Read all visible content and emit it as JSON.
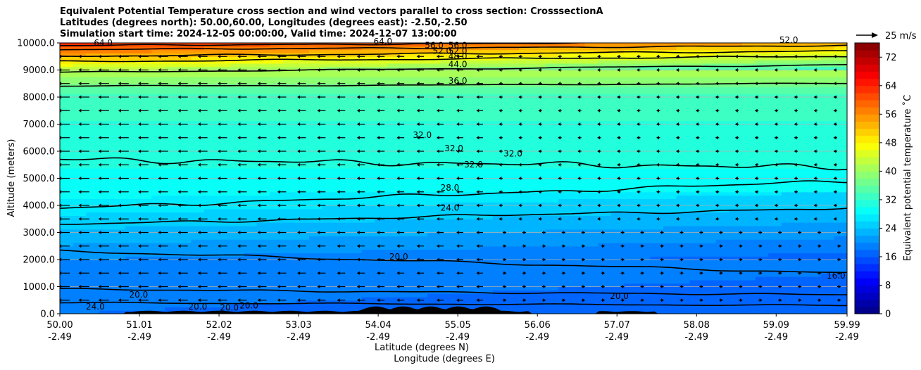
{
  "chart_data": {
    "type": "contour",
    "title": [
      "Equivalent Potential Temperature cross section and wind vectors parallel to cross section: CrosssectionA",
      "Latitudes (degrees north): 50.00,60.00, Longitudes (degrees east): -2.50,-2.50",
      "Simulation start time: 2024-12-05 00:00:00, Valid time: 2024-12-07 13:00:00"
    ],
    "ylabel": "Altitude (meters)",
    "xlabel": "Latitude (degrees N)",
    "xlabel2": "Longitude (degrees E)",
    "ylim": [
      0,
      10000
    ],
    "xlim": [
      50.0,
      59.99
    ],
    "yticks": [
      "0.0",
      "1000.0",
      "2000.0",
      "3000.0",
      "4000.0",
      "5000.0",
      "6000.0",
      "7000.0",
      "8000.0",
      "9000.0",
      "10000.0"
    ],
    "ytick_values": [
      0,
      1000,
      2000,
      3000,
      4000,
      5000,
      6000,
      7000,
      8000,
      9000,
      10000
    ],
    "xticks_lat": [
      "50.00",
      "51.01",
      "52.02",
      "53.03",
      "54.04",
      "55.05",
      "56.06",
      "57.07",
      "58.08",
      "59.09",
      "59.99"
    ],
    "xtick_values": [
      50.0,
      51.01,
      52.02,
      53.03,
      54.04,
      55.05,
      56.06,
      57.07,
      58.08,
      59.09,
      59.99
    ],
    "xticks_lon": [
      "-2.49",
      "-2.49",
      "-2.49",
      "-2.49",
      "-2.49",
      "-2.49",
      "-2.49",
      "-2.49",
      "-2.49",
      "-2.49",
      "-2.49"
    ],
    "colorbar": {
      "label": "Equivalent potential temperature ˚C",
      "ticks": [
        "0",
        "8",
        "16",
        "24",
        "32",
        "40",
        "48",
        "56",
        "64",
        "72"
      ],
      "tick_values": [
        0,
        8,
        16,
        24,
        32,
        40,
        48,
        56,
        64,
        72
      ],
      "range": [
        0,
        76
      ]
    },
    "quiver_key": "25 m/s",
    "contour_labels": [
      "64.0",
      "64.0",
      "56.0",
      "56.0",
      "52.0",
      "52.0",
      "52.0",
      "48.0",
      "44.0",
      "36.0",
      "32.0",
      "32.0",
      "32.0",
      "32.0",
      "28.0",
      "24.0",
      "20.0",
      "20.0",
      "20.0",
      "20.0",
      "20.0",
      "20.0",
      "24.0",
      "16.0"
    ],
    "colors": {
      "colormap": [
        "#00007f",
        "#0000ff",
        "#007fff",
        "#00ffff",
        "#7fff7f",
        "#ffff00",
        "#ff7f00",
        "#ff0000",
        "#7f0000"
      ],
      "contour_line": "#000000",
      "terrain": "#000000",
      "grid": "#b0b0b0"
    }
  }
}
